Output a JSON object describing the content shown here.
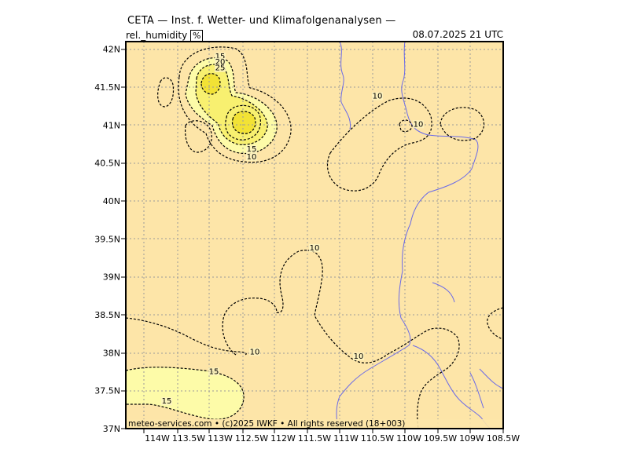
{
  "header": {
    "title": "CETA — Inst. f. Wetter- und Klimafolgenanalysen —",
    "variable": "rel._humidity",
    "unit": "%",
    "valid_time": "08.07.2025  21 UTC"
  },
  "footer": {
    "copyright": "meteo-services.com  •  (c)2025 IWKF  •  All rights reserved  (18+003)"
  },
  "map": {
    "lon_range": [
      -114.5,
      -108.5
    ],
    "lat_range": [
      37.0,
      42.1
    ],
    "lon_ticks": [
      {
        "value": -114.0,
        "label": "114W"
      },
      {
        "value": -113.5,
        "label": "113.5W"
      },
      {
        "value": -113.0,
        "label": "113W"
      },
      {
        "value": -112.5,
        "label": "112.5W"
      },
      {
        "value": -112.0,
        "label": "112W"
      },
      {
        "value": -111.5,
        "label": "111.5W"
      },
      {
        "value": -111.0,
        "label": "111W"
      },
      {
        "value": -110.5,
        "label": "110.5W"
      },
      {
        "value": -110.0,
        "label": "110W"
      },
      {
        "value": -109.5,
        "label": "109.5W"
      },
      {
        "value": -109.0,
        "label": "109W"
      },
      {
        "value": -108.5,
        "label": "108.5W"
      }
    ],
    "lat_ticks": [
      {
        "value": 42.0,
        "label": "42N"
      },
      {
        "value": 41.5,
        "label": "41.5N"
      },
      {
        "value": 41.0,
        "label": "41N"
      },
      {
        "value": 40.5,
        "label": "40.5N"
      },
      {
        "value": 40.0,
        "label": "40N"
      },
      {
        "value": 39.5,
        "label": "39.5N"
      },
      {
        "value": 39.0,
        "label": "39N"
      },
      {
        "value": 38.5,
        "label": "38.5N"
      },
      {
        "value": 38.0,
        "label": "38N"
      },
      {
        "value": 37.5,
        "label": "37.5N"
      },
      {
        "value": 37.0,
        "label": "37N"
      }
    ],
    "contour_labels": [
      {
        "text": "15",
        "lon": -113.0,
        "lat": 41.87
      },
      {
        "text": "20",
        "lon": -113.0,
        "lat": 41.8
      },
      {
        "text": "25",
        "lon": -113.0,
        "lat": 41.72
      },
      {
        "text": "15",
        "lon": -112.5,
        "lat": 40.65
      },
      {
        "text": "10",
        "lon": -112.5,
        "lat": 40.55
      },
      {
        "text": "10",
        "lon": -110.5,
        "lat": 41.35
      },
      {
        "text": "10",
        "lon": -109.85,
        "lat": 40.98
      },
      {
        "text": "10",
        "lon": -111.5,
        "lat": 39.35
      },
      {
        "text": "10",
        "lon": -112.45,
        "lat": 37.98
      },
      {
        "text": "10",
        "lon": -110.8,
        "lat": 37.92
      },
      {
        "text": "15",
        "lon": -113.1,
        "lat": 37.72
      },
      {
        "text": "15",
        "lon": -113.85,
        "lat": 37.33
      }
    ],
    "colors": {
      "background": "#fde5a8",
      "level_15": "#fdfba8",
      "level_20": "#f8f070",
      "level_25": "#f2e235",
      "rivers": "#6a6ae8",
      "grid": "#9a9a9a"
    }
  }
}
